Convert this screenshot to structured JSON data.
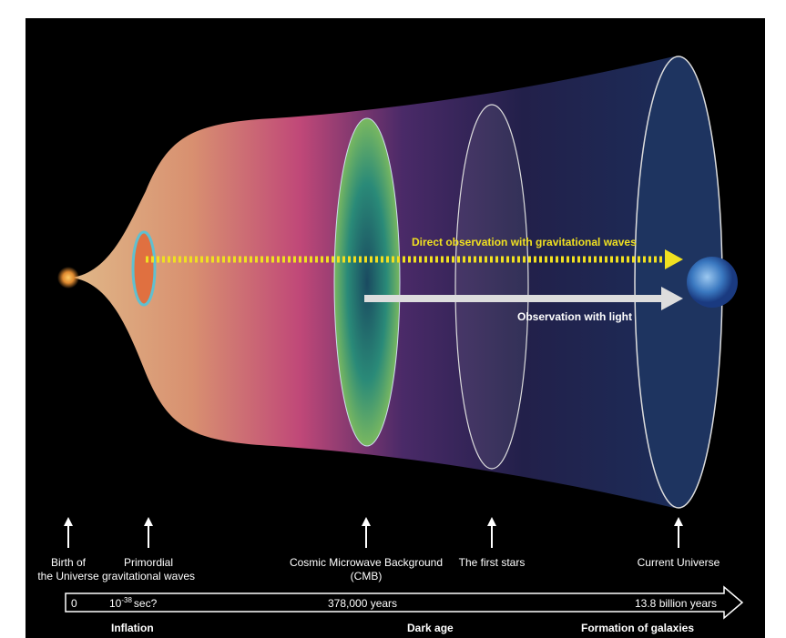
{
  "arrows": {
    "gravitational": "Direct observation with gravitational waves",
    "light": "Observation with light"
  },
  "milestones": [
    {
      "lines": [
        "Birth of",
        "the Universe"
      ]
    },
    {
      "lines": [
        "Primordial",
        "gravitational waves"
      ]
    },
    {
      "lines": [
        "Cosmic Microwave Background",
        "(CMB)"
      ]
    },
    {
      "lines": [
        "The first stars"
      ]
    },
    {
      "lines": [
        "Current Universe"
      ]
    }
  ],
  "timeline": {
    "start": "0",
    "inflation_time": {
      "base": "10",
      "exponent": "-38",
      "suffix": "sec?"
    },
    "cmb_time": "378,000 years",
    "now": "13.8 billion years"
  },
  "eras": [
    "Inflation",
    "Dark age",
    "Formation of galaxies"
  ]
}
